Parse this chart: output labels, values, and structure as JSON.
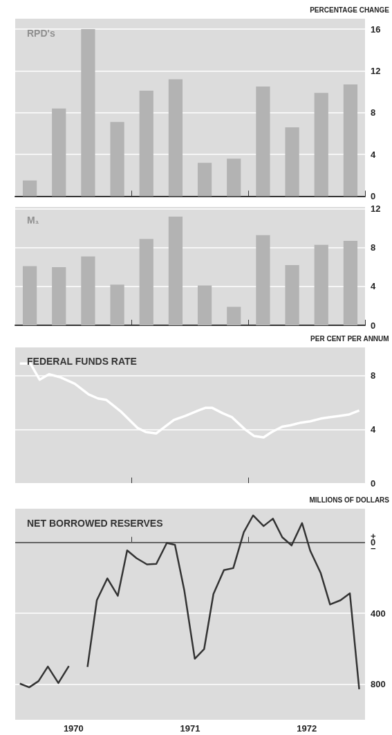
{
  "chart_data": [
    {
      "type": "bar",
      "title": "RPD's",
      "ylabel": "PERCENTAGE CHANGE",
      "categories": [
        null,
        null,
        null,
        null,
        null,
        null,
        null,
        null,
        null,
        null,
        null,
        null
      ],
      "values": [
        1.5,
        8.4,
        16.0,
        7.1,
        10.1,
        11.2,
        3.2,
        3.6,
        10.5,
        6.6,
        9.9,
        10.7
      ],
      "color": "#b3b3b3",
      "ylim": [
        0,
        17
      ],
      "yticks": [
        0,
        4,
        8,
        12,
        16
      ],
      "grid": "y",
      "tick_labels": "y"
    },
    {
      "type": "bar",
      "title": "M₁",
      "categories": [
        null,
        null,
        null,
        null,
        null,
        null,
        null,
        null,
        null,
        null,
        null,
        null
      ],
      "values": [
        6.1,
        6.0,
        7.1,
        4.2,
        8.9,
        11.2,
        4.1,
        1.9,
        9.3,
        6.2,
        8.3,
        8.7
      ],
      "color": "#b3b3b3",
      "ylim": [
        0,
        12.2
      ],
      "yticks": [
        0,
        4,
        8,
        12
      ],
      "grid": "y",
      "tick_labels": "y"
    },
    {
      "type": "line",
      "title": "FEDERAL FUNDS RATE",
      "ylabel": "PER CENT PER ANNUM",
      "x": [
        1970.04,
        1970.13,
        1970.21,
        1970.29,
        1970.38,
        1970.51,
        1970.63,
        1970.71,
        1970.78,
        1970.91,
        1971.05,
        1971.12,
        1971.21,
        1971.36,
        1971.46,
        1971.57,
        1971.63,
        1971.69,
        1971.78,
        1971.86,
        1971.97,
        1972.05,
        1972.13,
        1972.2,
        1972.29,
        1972.36,
        1972.45,
        1972.53,
        1972.62,
        1972.69,
        1972.78,
        1972.86,
        1972.95
      ],
      "values": [
        8.9,
        8.9,
        7.7,
        8.1,
        7.9,
        7.4,
        6.6,
        6.3,
        6.2,
        5.3,
        4.1,
        3.8,
        3.7,
        4.7,
        5.0,
        5.4,
        5.6,
        5.6,
        5.2,
        4.9,
        4.0,
        3.5,
        3.4,
        3.8,
        4.2,
        4.3,
        4.5,
        4.6,
        4.8,
        4.9,
        5.0,
        5.1,
        5.4
      ],
      "color": "#ffffff",
      "xlim": [
        1970,
        1973
      ],
      "xticks": [
        {
          "value": 1971,
          "label": null
        },
        {
          "value": 1972,
          "label": null
        }
      ],
      "ylim": [
        0,
        10.1
      ],
      "yticks": [
        0,
        4,
        8
      ],
      "grid": "y",
      "tick_labels": "y",
      "marker": "none"
    },
    {
      "type": "line",
      "title": "NET BORROWED RESERVES",
      "ylabel": "MILLIONS OF DOLLARS",
      "x": [
        1970.04,
        1970.12,
        1970.2,
        1970.28,
        1970.37,
        1970.46,
        1970.51,
        1970.54,
        1970.57,
        1970.62,
        1970.7,
        1970.79,
        1970.88,
        1970.96,
        1971.04,
        1971.13,
        1971.21,
        1971.3,
        1971.37,
        1971.45,
        1971.54,
        1971.62,
        1971.7,
        1971.79,
        1971.87,
        1971.96,
        1972.04,
        1972.13,
        1972.21,
        1972.29,
        1972.37,
        1972.46,
        1972.53,
        1972.62,
        1972.7,
        1972.79,
        1972.87,
        1972.95
      ],
      "values": [
        796,
        817,
        782,
        700,
        793,
        697,
        null,
        null,
        null,
        702,
        326,
        203,
        301,
        45,
        89,
        124,
        121,
        3,
        14,
        270,
        656,
        602,
        291,
        156,
        145,
        -57,
        -152,
        -92,
        -134,
        -29,
        17,
        -109,
        47,
        173,
        350,
        326,
        287,
        828
      ],
      "color": "#333333",
      "xlim": [
        1970,
        1973
      ],
      "xticks": [
        {
          "value": 1970.5,
          "label": "1970"
        },
        {
          "value": 1971,
          "label": null
        },
        {
          "value": 1971.5,
          "label": "1971"
        },
        {
          "value": 1972,
          "label": null
        },
        {
          "value": 1972.5,
          "label": "1972"
        }
      ],
      "ylim": [
        1000,
        -190
      ],
      "yticks": [
        {
          "value": 0,
          "label": "+\n0\n−"
        },
        400,
        800
      ],
      "grid": "y",
      "ref_lines": [
        {
          "axis": "y",
          "value": 0,
          "color": "#333333"
        }
      ],
      "marker": "none"
    }
  ]
}
